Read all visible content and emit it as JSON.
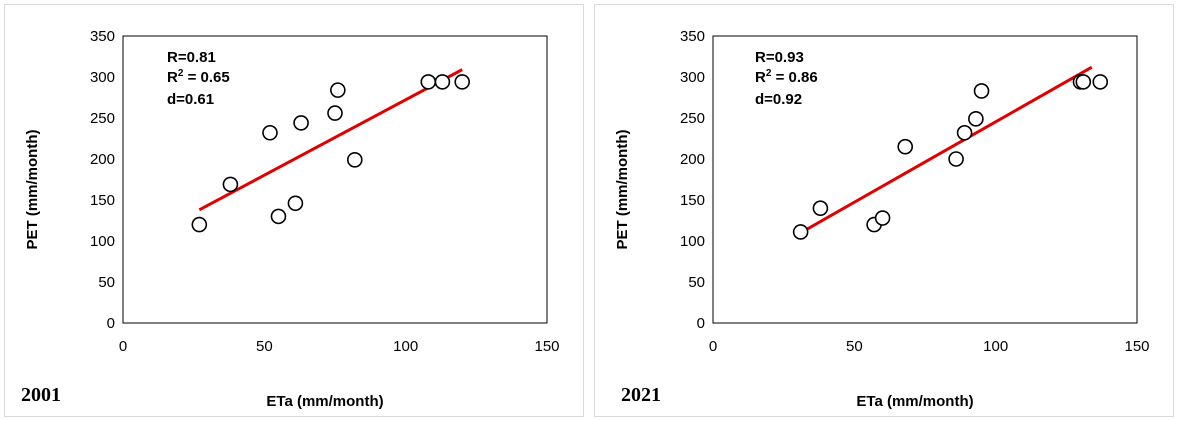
{
  "chart_data": [
    {
      "type": "scatter",
      "year_label": "2001",
      "xlabel": "ETa (mm/month)",
      "ylabel": "PET (mm/month)",
      "xlim": [
        0,
        150
      ],
      "ylim": [
        0,
        350
      ],
      "xticks": [
        0,
        50,
        100,
        150
      ],
      "yticks": [
        0,
        50,
        100,
        150,
        200,
        250,
        300,
        350
      ],
      "grid": false,
      "stats": {
        "r": "R=0.81",
        "r2_prefix": "R",
        "r2_sup": "2",
        "r2_value": " = 0.65",
        "d": "d=0.61"
      },
      "points": [
        {
          "x": 27,
          "y": 120
        },
        {
          "x": 38,
          "y": 169
        },
        {
          "x": 52,
          "y": 232
        },
        {
          "x": 55,
          "y": 130
        },
        {
          "x": 61,
          "y": 146
        },
        {
          "x": 63,
          "y": 244
        },
        {
          "x": 75,
          "y": 256
        },
        {
          "x": 76,
          "y": 284
        },
        {
          "x": 82,
          "y": 199
        },
        {
          "x": 108,
          "y": 294
        },
        {
          "x": 113,
          "y": 294
        },
        {
          "x": 120,
          "y": 294
        }
      ],
      "trendline": {
        "x": [
          27,
          120
        ],
        "y": [
          138,
          309
        ],
        "color": "#e00000"
      },
      "marker_fill": "#ffffff",
      "marker_stroke": "#000000"
    },
    {
      "type": "scatter",
      "year_label": "2021",
      "xlabel": "ETa (mm/month)",
      "ylabel": "PET (mm/month)",
      "xlim": [
        0,
        150
      ],
      "ylim": [
        0,
        350
      ],
      "xticks": [
        0,
        50,
        100,
        150
      ],
      "yticks": [
        0,
        50,
        100,
        150,
        200,
        250,
        300,
        350
      ],
      "grid": false,
      "stats": {
        "r": "R=0.93",
        "r2_prefix": "R",
        "r2_sup": "2",
        "r2_value": " = 0.86",
        "d": "d=0.92"
      },
      "points": [
        {
          "x": 31,
          "y": 111
        },
        {
          "x": 38,
          "y": 140
        },
        {
          "x": 57,
          "y": 120
        },
        {
          "x": 60,
          "y": 128
        },
        {
          "x": 68,
          "y": 215
        },
        {
          "x": 86,
          "y": 200
        },
        {
          "x": 89,
          "y": 232
        },
        {
          "x": 93,
          "y": 249
        },
        {
          "x": 95,
          "y": 283
        },
        {
          "x": 130,
          "y": 294
        },
        {
          "x": 131,
          "y": 294
        },
        {
          "x": 137,
          "y": 294
        }
      ],
      "trendline": {
        "x": [
          31,
          134
        ],
        "y": [
          110,
          312
        ],
        "color": "#e00000"
      },
      "marker_fill": "#ffffff",
      "marker_stroke": "#000000"
    }
  ]
}
